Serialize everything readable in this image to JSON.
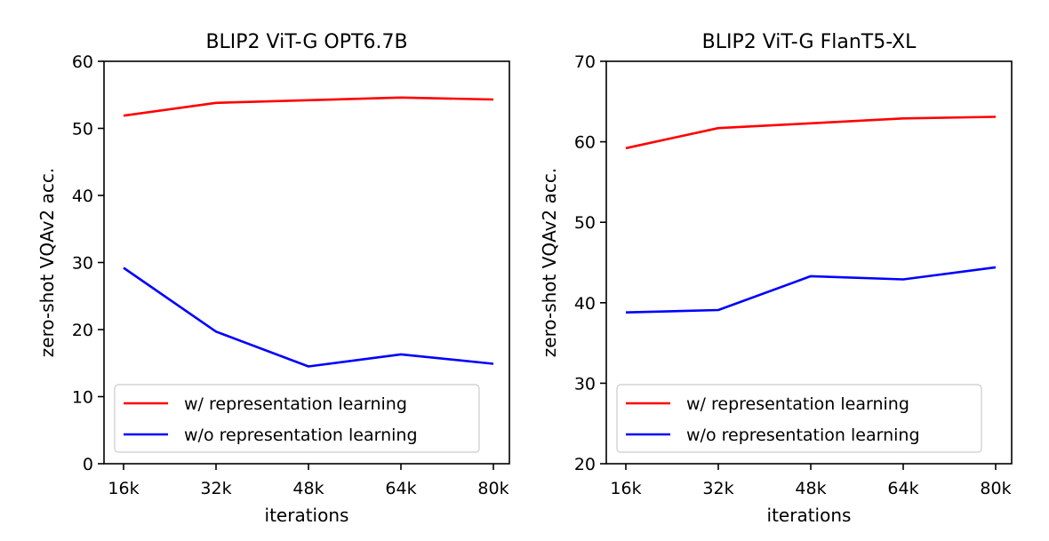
{
  "chart_data": [
    {
      "type": "line",
      "title": "BLIP2 ViT-G OPT6.7B",
      "xlabel": "iterations",
      "ylabel": "zero-shot VQAv2 acc.",
      "categories": [
        "16k",
        "32k",
        "48k",
        "64k",
        "80k"
      ],
      "ylim": [
        0,
        60
      ],
      "yticks": [
        0,
        10,
        20,
        30,
        40,
        50,
        60
      ],
      "grid": false,
      "legend_position": "lower-left",
      "series": [
        {
          "name": "w/ representation learning",
          "color": "#ff0000",
          "values": [
            51.9,
            53.8,
            54.2,
            54.6,
            54.3
          ]
        },
        {
          "name": "w/o representation learning",
          "color": "#0000ff",
          "values": [
            29.2,
            19.7,
            14.5,
            16.3,
            14.9
          ]
        }
      ]
    },
    {
      "type": "line",
      "title": "BLIP2 ViT-G FlanT5-XL",
      "xlabel": "iterations",
      "ylabel": "zero-shot VQAv2 acc.",
      "categories": [
        "16k",
        "32k",
        "48k",
        "64k",
        "80k"
      ],
      "ylim": [
        20,
        70
      ],
      "yticks": [
        20,
        30,
        40,
        50,
        60,
        70
      ],
      "grid": false,
      "legend_position": "lower-left",
      "series": [
        {
          "name": "w/ representation learning",
          "color": "#ff0000",
          "values": [
            59.2,
            61.7,
            62.3,
            62.9,
            63.1
          ]
        },
        {
          "name": "w/o representation learning",
          "color": "#0000ff",
          "values": [
            38.8,
            39.1,
            43.3,
            42.9,
            44.4
          ]
        }
      ]
    }
  ]
}
